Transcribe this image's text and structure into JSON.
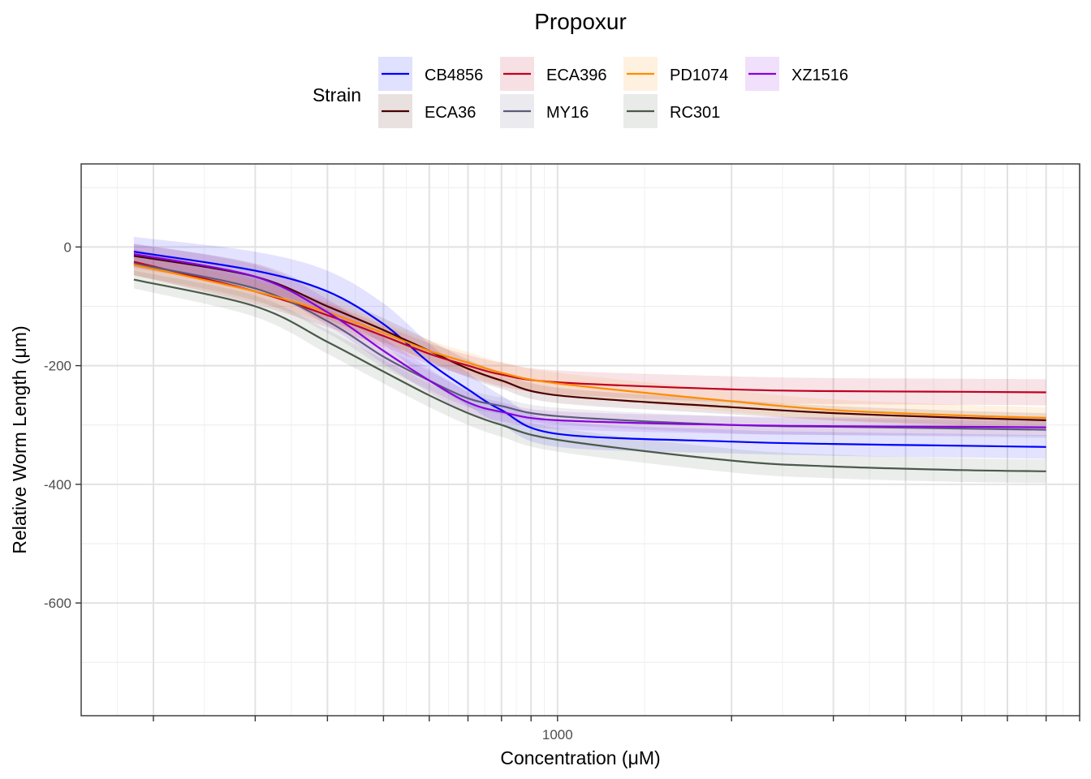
{
  "chart_data": {
    "type": "line",
    "title": "Propoxur",
    "xlabel": "Concentration (μM)",
    "ylabel": "Relative Worm Length (μm)",
    "x_scale": "log10",
    "xlim": [
      150,
      8000
    ],
    "ylim": [
      -790,
      140
    ],
    "x_ticks": [
      200,
      300,
      400,
      500,
      600,
      700,
      800,
      900,
      1000,
      2000,
      3000,
      4000,
      5000,
      6000,
      7000,
      8000
    ],
    "x_tick_labels": [
      {
        "x": 1000,
        "label": "1000"
      }
    ],
    "y_ticks": [
      0,
      -200,
      -400,
      -600
    ],
    "y_tick_labels": [
      "0",
      "-200",
      "-400",
      "-600"
    ],
    "grid": true,
    "legend": {
      "title": "Strain",
      "placement": "top",
      "columns": 4,
      "entries": [
        "CB4856",
        "ECA36",
        "ECA396",
        "MY16",
        "PD1074",
        "RC301",
        "XZ1516"
      ]
    },
    "series": [
      {
        "name": "CB4856",
        "color": "#0000ff",
        "fill": "#e1e1ff",
        "x": [
          185,
          300,
          400,
          500,
          600,
          700,
          800,
          1000,
          2000,
          3000,
          5000,
          7000
        ],
        "y": [
          -8,
          -40,
          -75,
          -130,
          -195,
          -240,
          -275,
          -315,
          -328,
          -332,
          -335,
          -337
        ],
        "ci": [
          25,
          32,
          35,
          35,
          32,
          28,
          25,
          22,
          20,
          20,
          20,
          20
        ]
      },
      {
        "name": "ECA36",
        "color": "#4a0000",
        "fill": "#eee6e6",
        "x": [
          185,
          300,
          400,
          500,
          600,
          700,
          800,
          1000,
          2000,
          3000,
          5000,
          7000
        ],
        "y": [
          -15,
          -50,
          -100,
          -140,
          -175,
          -205,
          -225,
          -250,
          -270,
          -280,
          -288,
          -292
        ],
        "ci": [
          20,
          22,
          22,
          20,
          18,
          15,
          14,
          13,
          12,
          12,
          12,
          12
        ]
      },
      {
        "name": "ECA396",
        "color": "#c00020",
        "fill": "#f8e4e6",
        "x": [
          185,
          300,
          400,
          500,
          600,
          700,
          800,
          1000,
          2000,
          3000,
          5000,
          7000
        ],
        "y": [
          -25,
          -75,
          -115,
          -150,
          -180,
          -200,
          -215,
          -228,
          -240,
          -243,
          -244,
          -245
        ],
        "ci": [
          22,
          22,
          20,
          18,
          18,
          18,
          20,
          20,
          22,
          22,
          22,
          22
        ]
      },
      {
        "name": "MY16",
        "color": "#5c5c7a",
        "fill": "#ececf0",
        "x": [
          185,
          300,
          400,
          500,
          600,
          700,
          800,
          1000,
          2000,
          3000,
          5000,
          7000
        ],
        "y": [
          -28,
          -70,
          -125,
          -185,
          -225,
          -255,
          -268,
          -285,
          -300,
          -303,
          -306,
          -308
        ],
        "ci": [
          20,
          20,
          20,
          18,
          16,
          15,
          14,
          14,
          14,
          14,
          14,
          14
        ]
      },
      {
        "name": "PD1074",
        "color": "#ff8c00",
        "fill": "#fff2e0",
        "x": [
          185,
          300,
          400,
          500,
          600,
          700,
          800,
          1000,
          2000,
          3000,
          5000,
          7000
        ],
        "y": [
          -30,
          -75,
          -110,
          -145,
          -175,
          -195,
          -212,
          -230,
          -260,
          -275,
          -284,
          -288
        ],
        "ci": [
          18,
          18,
          18,
          18,
          18,
          18,
          18,
          18,
          18,
          18,
          18,
          18
        ]
      },
      {
        "name": "RC301",
        "color": "#4a5a4a",
        "fill": "#e8ece8",
        "x": [
          185,
          300,
          400,
          500,
          600,
          700,
          800,
          1000,
          2000,
          3000,
          5000,
          7000
        ],
        "y": [
          -55,
          -100,
          -160,
          -210,
          -250,
          -280,
          -300,
          -325,
          -360,
          -370,
          -376,
          -378
        ],
        "ci": [
          15,
          18,
          20,
          20,
          20,
          20,
          20,
          20,
          20,
          20,
          20,
          20
        ]
      },
      {
        "name": "XZ1516",
        "color": "#8800dd",
        "fill": "#f0e2fa",
        "x": [
          185,
          300,
          400,
          500,
          600,
          700,
          800,
          1000,
          2000,
          3000,
          5000,
          7000
        ],
        "y": [
          -12,
          -50,
          -110,
          -175,
          -225,
          -262,
          -278,
          -292,
          -300,
          -302,
          -303,
          -304
        ],
        "ci": [
          18,
          20,
          22,
          22,
          20,
          18,
          16,
          15,
          15,
          15,
          15,
          15
        ]
      }
    ]
  }
}
